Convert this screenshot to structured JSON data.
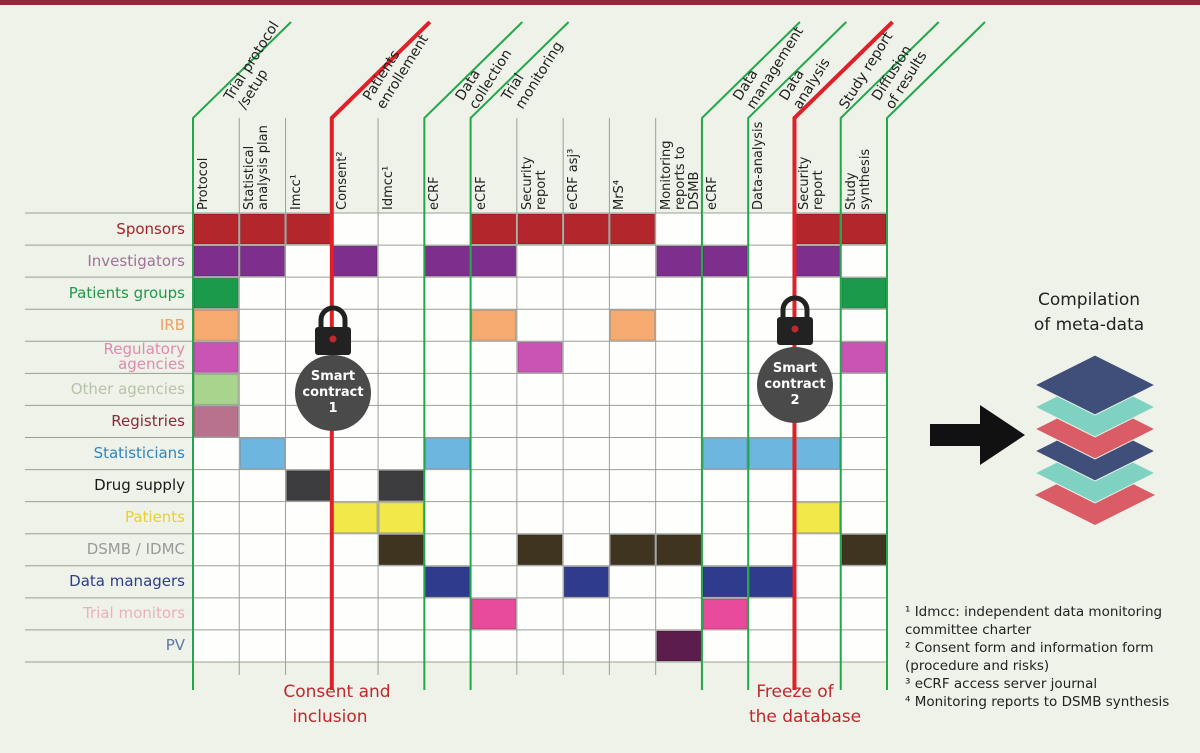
{
  "phases": [
    [
      "Trial protocol",
      "/setup"
    ],
    [
      "Patients",
      "enrollement"
    ],
    [
      "Data",
      "collection"
    ],
    [
      "Trial",
      "monitoring"
    ],
    [
      "Data",
      "management"
    ],
    [
      "Data",
      "analysis"
    ],
    [
      "Study report"
    ],
    [
      "Diffusion",
      "of results"
    ]
  ],
  "columns": [
    "Protocol",
    "Statistical analysis plan",
    "Imcc¹",
    "Consent²",
    "Idmcc¹",
    "eCRF",
    "eCRF",
    "Security report",
    "eCRF asj³",
    "MrS⁴",
    "Monitoring reports to DSMB",
    "eCRF",
    "Data-analysis",
    "Security report",
    "Study synthesis"
  ],
  "rows": [
    {
      "label": "Sponsors",
      "label_color": "#a3232a",
      "fill_color": "#b3262c",
      "filled": [
        0,
        1,
        2,
        6,
        7,
        8,
        9,
        13,
        14
      ]
    },
    {
      "label": "Investigators",
      "label_color": "#a0719a",
      "fill_color": "#7e2f8e",
      "filled": [
        0,
        1,
        3,
        5,
        6,
        10,
        11,
        13
      ]
    },
    {
      "label": "Patients groups",
      "label_color": "#1f9a4a",
      "fill_color": "#1c9a4c",
      "filled": [
        0,
        14
      ]
    },
    {
      "label": "IRB",
      "label_color": "#f0a060",
      "fill_color": "#f7aa70",
      "filled": [
        0,
        6,
        9
      ]
    },
    {
      "label": "Regulatory agencies",
      "label_color": "#e08ab0",
      "fill_color": "#c954b4",
      "filled": [
        0,
        7,
        14
      ]
    },
    {
      "label": "Other agencies",
      "label_color": "#b8c2a8",
      "fill_color": "#a8d48e",
      "filled": [
        0
      ]
    },
    {
      "label": "Registries",
      "label_color": "#8a2a38",
      "fill_color": "#b8728e",
      "filled": [
        0
      ]
    },
    {
      "label": "Statisticians",
      "label_color": "#2f86c0",
      "fill_color": "#6cb6e0",
      "filled": [
        1,
        5,
        11,
        12,
        13
      ]
    },
    {
      "label": "Drug supply",
      "label_color": "#1a1a1a",
      "fill_color": "#3c3c3e",
      "filled": [
        2,
        4
      ]
    },
    {
      "label": "Patients",
      "label_color": "#e8cf30",
      "fill_color": "#f2e84a",
      "filled": [
        3,
        4,
        13
      ]
    },
    {
      "label": "DSMB / IDMC",
      "label_color": "#9a9a9a",
      "fill_color": "#3e3420",
      "filled": [
        4,
        7,
        9,
        10,
        14
      ]
    },
    {
      "label": "Data managers",
      "label_color": "#2f3d8a",
      "fill_color": "#2f3c8e",
      "filled": [
        5,
        8,
        11,
        12
      ]
    },
    {
      "label": "Trial monitors",
      "label_color": "#ebb0b8",
      "fill_color": "#e84a9c",
      "filled": [
        6,
        11
      ]
    },
    {
      "label": "PV",
      "label_color": "#5a78a8",
      "fill_color": "#5c1c4c",
      "filled": [
        10
      ]
    }
  ],
  "smart_contracts": [
    [
      "Smart",
      "contract",
      "1"
    ],
    [
      "Smart",
      "contract",
      "2"
    ]
  ],
  "milestones": [
    [
      "Consent and",
      "inclusion"
    ],
    [
      "Freeze of",
      "the database"
    ]
  ],
  "compilation": [
    "Compilation",
    "of meta-data"
  ],
  "footnotes": [
    "¹ Idmcc: independent data monitoring committee charter",
    "² Consent form and information form (procedure and risks)",
    "³ eCRF access server journal",
    "⁴ Monitoring reports to DSMB synthesis"
  ]
}
